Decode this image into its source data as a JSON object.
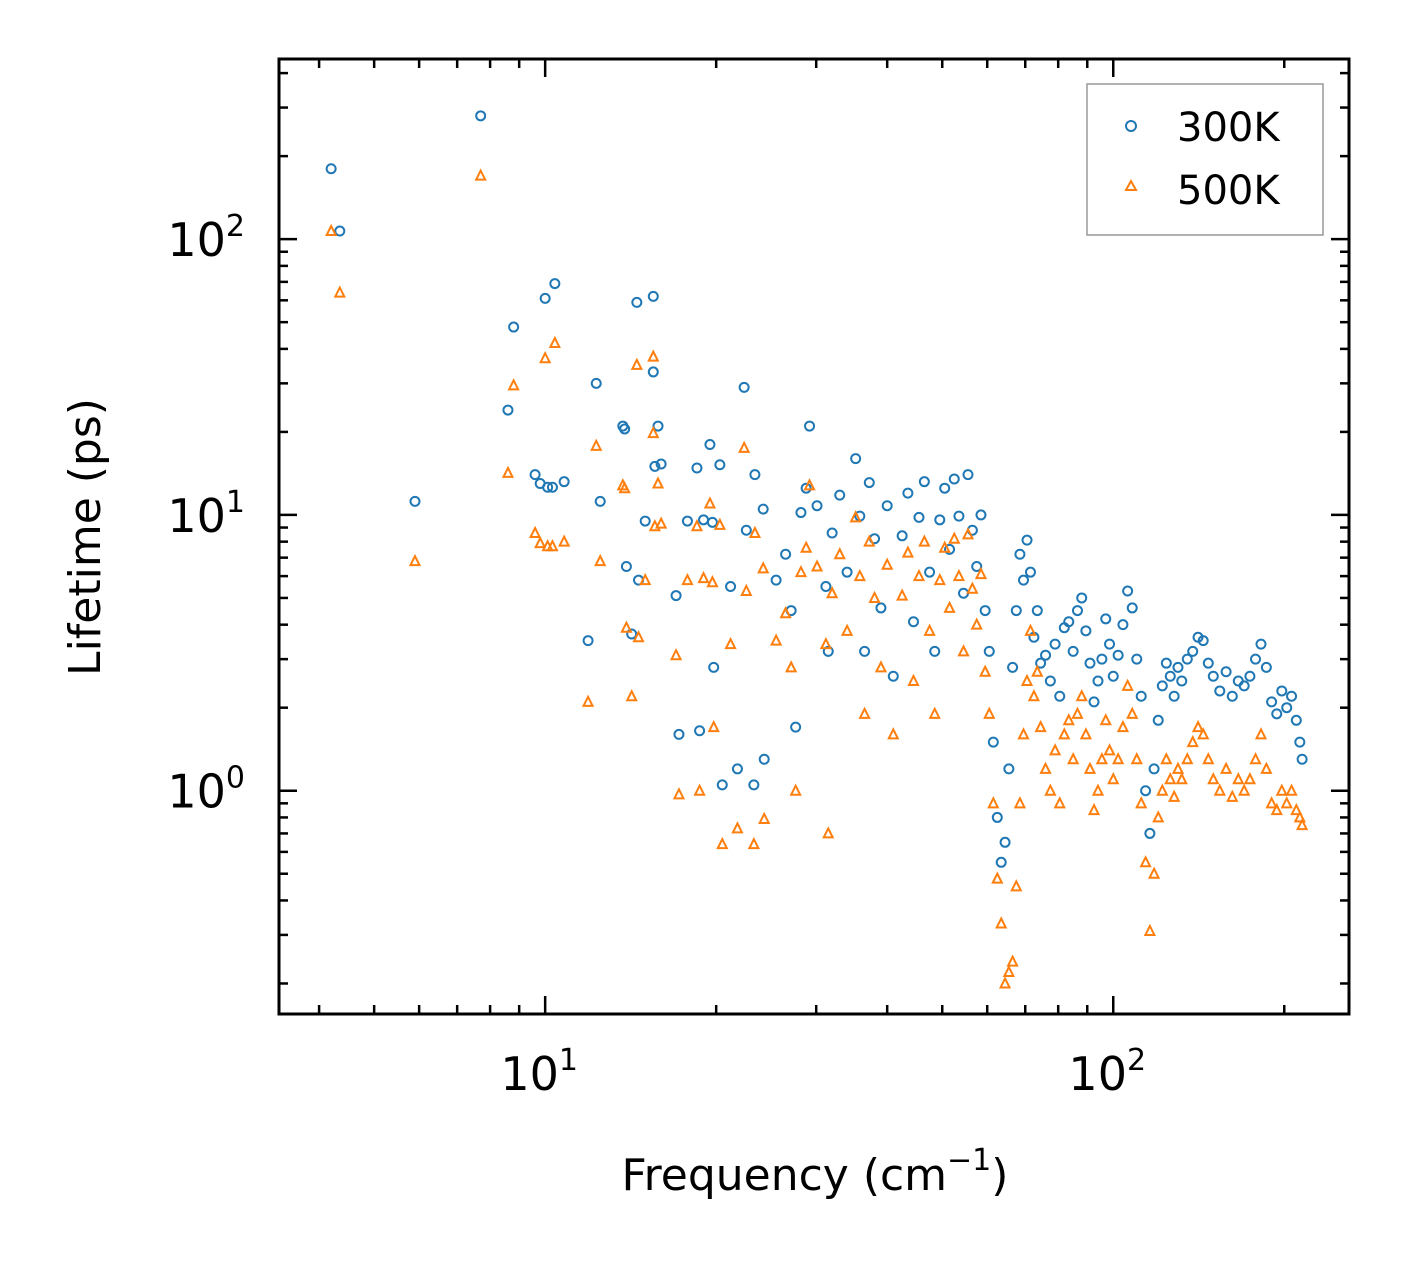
{
  "chart_data": {
    "type": "scatter",
    "title": "",
    "xlabel": "Frequency (cm",
    "xlabel_exp": "−1",
    "xlabel_close": ")",
    "ylabel": "Lifetime (ps)",
    "xscale": "log",
    "yscale": "log",
    "xlim": [
      3.4,
      260
    ],
    "ylim": [
      0.155,
      450
    ],
    "x_ticks": [
      {
        "value": 10,
        "base": "10",
        "exp": "1"
      },
      {
        "value": 100,
        "base": "10",
        "exp": "2"
      }
    ],
    "y_ticks": [
      {
        "value": 1,
        "base": "10",
        "exp": "0"
      },
      {
        "value": 10,
        "base": "10",
        "exp": "1"
      },
      {
        "value": 100,
        "base": "10",
        "exp": "2"
      }
    ],
    "legend_position": "top-right",
    "series": [
      {
        "name": "300K",
        "marker": "circle",
        "color": "#1f77b4",
        "points": [
          [
            4.2,
            180
          ],
          [
            4.35,
            107
          ],
          [
            5.9,
            11.2
          ],
          [
            7.7,
            280
          ],
          [
            8.6,
            24
          ],
          [
            8.8,
            48
          ],
          [
            9.6,
            14
          ],
          [
            9.8,
            13
          ],
          [
            10.0,
            61
          ],
          [
            10.1,
            12.6
          ],
          [
            10.3,
            12.6
          ],
          [
            10.4,
            69
          ],
          [
            10.8,
            13.2
          ],
          [
            11.9,
            3.5
          ],
          [
            12.3,
            30
          ],
          [
            12.5,
            11.2
          ],
          [
            13.7,
            21
          ],
          [
            13.8,
            20.5
          ],
          [
            13.9,
            6.5
          ],
          [
            14.2,
            3.7
          ],
          [
            14.5,
            59
          ],
          [
            14.6,
            5.8
          ],
          [
            15.0,
            9.5
          ],
          [
            15.5,
            62
          ],
          [
            15.5,
            33
          ],
          [
            15.6,
            15
          ],
          [
            15.8,
            21
          ],
          [
            16.0,
            15.3
          ],
          [
            17.0,
            5.1
          ],
          [
            17.2,
            1.6
          ],
          [
            17.8,
            9.5
          ],
          [
            18.5,
            14.8
          ],
          [
            18.7,
            1.65
          ],
          [
            19.0,
            9.6
          ],
          [
            19.5,
            18
          ],
          [
            19.7,
            9.4
          ],
          [
            19.8,
            2.8
          ],
          [
            20.3,
            15.2
          ],
          [
            20.5,
            1.05
          ],
          [
            21.2,
            5.5
          ],
          [
            21.8,
            1.2
          ],
          [
            22.4,
            29
          ],
          [
            22.6,
            8.8
          ],
          [
            23.3,
            1.05
          ],
          [
            23.4,
            14
          ],
          [
            24.2,
            10.5
          ],
          [
            24.3,
            1.3
          ],
          [
            25.5,
            5.8
          ],
          [
            26.5,
            7.2
          ],
          [
            27.1,
            4.5
          ],
          [
            27.6,
            1.7
          ],
          [
            28.2,
            10.2
          ],
          [
            28.8,
            12.5
          ],
          [
            29.2,
            21
          ],
          [
            30.1,
            10.8
          ],
          [
            31.2,
            5.5
          ],
          [
            31.5,
            3.2
          ],
          [
            32.0,
            8.6
          ],
          [
            33.0,
            11.8
          ],
          [
            34.0,
            6.2
          ],
          [
            35.2,
            16
          ],
          [
            35.8,
            9.9
          ],
          [
            36.5,
            3.2
          ],
          [
            37.2,
            13.1
          ],
          [
            38.0,
            8.2
          ],
          [
            39.0,
            4.6
          ],
          [
            40.0,
            10.8
          ],
          [
            41.0,
            2.6
          ],
          [
            42.5,
            8.4
          ],
          [
            43.5,
            12
          ],
          [
            44.5,
            4.1
          ],
          [
            45.5,
            9.8
          ],
          [
            46.5,
            13.2
          ],
          [
            47.5,
            6.2
          ],
          [
            48.5,
            3.2
          ],
          [
            49.5,
            9.6
          ],
          [
            50.5,
            12.5
          ],
          [
            51.5,
            7.5
          ],
          [
            52.5,
            13.5
          ],
          [
            53.5,
            9.9
          ],
          [
            54.5,
            5.2
          ],
          [
            55.5,
            14
          ],
          [
            56.5,
            8.8
          ],
          [
            57.5,
            6.5
          ],
          [
            58.5,
            10
          ],
          [
            59.5,
            4.5
          ],
          [
            60.5,
            3.2
          ],
          [
            61.5,
            1.5
          ],
          [
            62.5,
            0.8
          ],
          [
            63.5,
            0.55
          ],
          [
            64.5,
            0.65
          ],
          [
            65.5,
            1.2
          ],
          [
            66.5,
            2.8
          ],
          [
            67.5,
            4.5
          ],
          [
            68.5,
            7.2
          ],
          [
            69.5,
            5.8
          ],
          [
            70.5,
            8.1
          ],
          [
            71.5,
            6.2
          ],
          [
            72.5,
            3.6
          ],
          [
            73.5,
            4.5
          ],
          [
            74.5,
            2.9
          ],
          [
            76.0,
            3.1
          ],
          [
            77.5,
            2.5
          ],
          [
            79.0,
            3.4
          ],
          [
            80.5,
            2.2
          ],
          [
            82.0,
            3.9
          ],
          [
            83.5,
            4.1
          ],
          [
            85.0,
            3.2
          ],
          [
            86.5,
            4.5
          ],
          [
            88.0,
            5.0
          ],
          [
            89.5,
            3.8
          ],
          [
            91.0,
            2.9
          ],
          [
            92.5,
            2.1
          ],
          [
            94.0,
            2.5
          ],
          [
            95.5,
            3.0
          ],
          [
            97.0,
            4.2
          ],
          [
            98.5,
            3.4
          ],
          [
            100.0,
            2.6
          ],
          [
            102.0,
            3.1
          ],
          [
            104.0,
            4.0
          ],
          [
            106.0,
            5.3
          ],
          [
            108.0,
            4.6
          ],
          [
            110.0,
            3.0
          ],
          [
            112.0,
            2.2
          ],
          [
            114.0,
            1.0
          ],
          [
            116.0,
            0.7
          ],
          [
            118.0,
            1.2
          ],
          [
            120.0,
            1.8
          ],
          [
            122.0,
            2.4
          ],
          [
            124.0,
            2.9
          ],
          [
            126.0,
            2.6
          ],
          [
            128.0,
            2.2
          ],
          [
            130.0,
            2.8
          ],
          [
            132.0,
            2.5
          ],
          [
            135.0,
            3.0
          ],
          [
            138.0,
            3.2
          ],
          [
            141.0,
            3.6
          ],
          [
            144.0,
            3.5
          ],
          [
            147.0,
            2.9
          ],
          [
            150.0,
            2.6
          ],
          [
            154.0,
            2.3
          ],
          [
            158.0,
            2.7
          ],
          [
            162.0,
            2.2
          ],
          [
            166.0,
            2.5
          ],
          [
            170.0,
            2.4
          ],
          [
            174.0,
            2.6
          ],
          [
            178.0,
            3.0
          ],
          [
            182.0,
            3.4
          ],
          [
            186.0,
            2.8
          ],
          [
            190.0,
            2.1
          ],
          [
            194.0,
            1.9
          ],
          [
            198.0,
            2.3
          ],
          [
            202.0,
            2.0
          ],
          [
            206.0,
            2.2
          ],
          [
            210.0,
            1.8
          ],
          [
            213.0,
            1.5
          ],
          [
            215.0,
            1.3
          ]
        ]
      },
      {
        "name": "500K",
        "marker": "triangle",
        "color": "#ff7f0e",
        "points": [
          [
            4.2,
            107
          ],
          [
            4.35,
            64
          ],
          [
            5.9,
            6.8
          ],
          [
            7.7,
            170
          ],
          [
            8.6,
            14.2
          ],
          [
            8.8,
            29.5
          ],
          [
            9.6,
            8.6
          ],
          [
            9.8,
            7.9
          ],
          [
            10.0,
            37
          ],
          [
            10.1,
            7.7
          ],
          [
            10.3,
            7.7
          ],
          [
            10.4,
            42
          ],
          [
            10.8,
            8.0
          ],
          [
            11.9,
            2.1
          ],
          [
            12.3,
            17.8
          ],
          [
            12.5,
            6.8
          ],
          [
            13.7,
            12.8
          ],
          [
            13.8,
            12.5
          ],
          [
            13.9,
            3.9
          ],
          [
            14.2,
            2.2
          ],
          [
            14.5,
            35
          ],
          [
            14.6,
            3.6
          ],
          [
            15.0,
            5.8
          ],
          [
            15.5,
            37.5
          ],
          [
            15.5,
            19.8
          ],
          [
            15.6,
            9.1
          ],
          [
            15.8,
            13
          ],
          [
            16.0,
            9.3
          ],
          [
            17.0,
            3.1
          ],
          [
            17.2,
            0.97
          ],
          [
            17.8,
            5.8
          ],
          [
            18.5,
            9.1
          ],
          [
            18.7,
            1.0
          ],
          [
            19.0,
            5.9
          ],
          [
            19.5,
            11
          ],
          [
            19.7,
            5.7
          ],
          [
            19.8,
            1.7
          ],
          [
            20.3,
            9.2
          ],
          [
            20.5,
            0.64
          ],
          [
            21.2,
            3.4
          ],
          [
            21.8,
            0.73
          ],
          [
            22.4,
            17.5
          ],
          [
            22.6,
            5.3
          ],
          [
            23.3,
            0.64
          ],
          [
            23.4,
            8.6
          ],
          [
            24.2,
            6.4
          ],
          [
            24.3,
            0.79
          ],
          [
            25.5,
            3.5
          ],
          [
            26.5,
            4.4
          ],
          [
            27.1,
            2.8
          ],
          [
            27.6,
            1.0
          ],
          [
            28.2,
            6.2
          ],
          [
            28.8,
            7.6
          ],
          [
            29.2,
            12.8
          ],
          [
            30.1,
            6.5
          ],
          [
            31.2,
            3.4
          ],
          [
            31.5,
            0.7
          ],
          [
            32.0,
            5.2
          ],
          [
            33.0,
            7.2
          ],
          [
            34.0,
            3.8
          ],
          [
            35.2,
            9.8
          ],
          [
            35.8,
            6.0
          ],
          [
            36.5,
            1.9
          ],
          [
            37.2,
            8.0
          ],
          [
            38.0,
            5.0
          ],
          [
            39.0,
            2.8
          ],
          [
            40.0,
            6.6
          ],
          [
            41.0,
            1.6
          ],
          [
            42.5,
            5.1
          ],
          [
            43.5,
            7.3
          ],
          [
            44.5,
            2.5
          ],
          [
            45.5,
            6.0
          ],
          [
            46.5,
            8.0
          ],
          [
            47.5,
            3.8
          ],
          [
            48.5,
            1.9
          ],
          [
            49.5,
            5.8
          ],
          [
            50.5,
            7.6
          ],
          [
            51.5,
            4.6
          ],
          [
            52.5,
            8.2
          ],
          [
            53.5,
            6.0
          ],
          [
            54.5,
            3.2
          ],
          [
            55.5,
            8.5
          ],
          [
            56.5,
            5.4
          ],
          [
            57.5,
            4.0
          ],
          [
            58.5,
            6.1
          ],
          [
            59.5,
            2.7
          ],
          [
            60.5,
            1.9
          ],
          [
            61.5,
            0.9
          ],
          [
            62.5,
            0.48
          ],
          [
            63.5,
            0.33
          ],
          [
            64.5,
            0.2
          ],
          [
            65.5,
            0.22
          ],
          [
            66.5,
            0.24
          ],
          [
            67.5,
            0.45
          ],
          [
            68.5,
            0.9
          ],
          [
            69.5,
            1.6
          ],
          [
            70.5,
            2.5
          ],
          [
            71.5,
            3.8
          ],
          [
            72.5,
            2.2
          ],
          [
            73.5,
            2.7
          ],
          [
            74.5,
            1.7
          ],
          [
            76.0,
            1.2
          ],
          [
            77.5,
            1.0
          ],
          [
            79.0,
            1.4
          ],
          [
            80.5,
            0.9
          ],
          [
            82.0,
            1.6
          ],
          [
            83.5,
            1.8
          ],
          [
            85.0,
            1.3
          ],
          [
            86.5,
            1.9
          ],
          [
            88.0,
            2.2
          ],
          [
            89.5,
            1.6
          ],
          [
            91.0,
            1.2
          ],
          [
            92.5,
            0.85
          ],
          [
            94.0,
            1.0
          ],
          [
            95.5,
            1.3
          ],
          [
            97.0,
            1.8
          ],
          [
            98.5,
            1.4
          ],
          [
            100.0,
            1.1
          ],
          [
            102.0,
            1.3
          ],
          [
            104.0,
            1.7
          ],
          [
            106.0,
            2.4
          ],
          [
            108.0,
            1.9
          ],
          [
            110.0,
            1.3
          ],
          [
            112.0,
            0.9
          ],
          [
            114.0,
            0.55
          ],
          [
            116.0,
            0.31
          ],
          [
            118.0,
            0.5
          ],
          [
            120.0,
            0.8
          ],
          [
            122.0,
            1.0
          ],
          [
            124.0,
            1.3
          ],
          [
            126.0,
            1.1
          ],
          [
            128.0,
            0.95
          ],
          [
            130.0,
            1.2
          ],
          [
            132.0,
            1.1
          ],
          [
            135.0,
            1.3
          ],
          [
            138.0,
            1.5
          ],
          [
            141.0,
            1.7
          ],
          [
            144.0,
            1.6
          ],
          [
            147.0,
            1.3
          ],
          [
            150.0,
            1.1
          ],
          [
            154.0,
            1.0
          ],
          [
            158.0,
            1.2
          ],
          [
            162.0,
            0.95
          ],
          [
            166.0,
            1.1
          ],
          [
            170.0,
            1.0
          ],
          [
            174.0,
            1.1
          ],
          [
            178.0,
            1.3
          ],
          [
            182.0,
            1.6
          ],
          [
            186.0,
            1.2
          ],
          [
            190.0,
            0.9
          ],
          [
            194.0,
            0.85
          ],
          [
            198.0,
            1.0
          ],
          [
            202.0,
            0.9
          ],
          [
            206.0,
            1.0
          ],
          [
            210.0,
            0.85
          ],
          [
            213.0,
            0.8
          ],
          [
            215.0,
            0.75
          ]
        ]
      }
    ]
  }
}
